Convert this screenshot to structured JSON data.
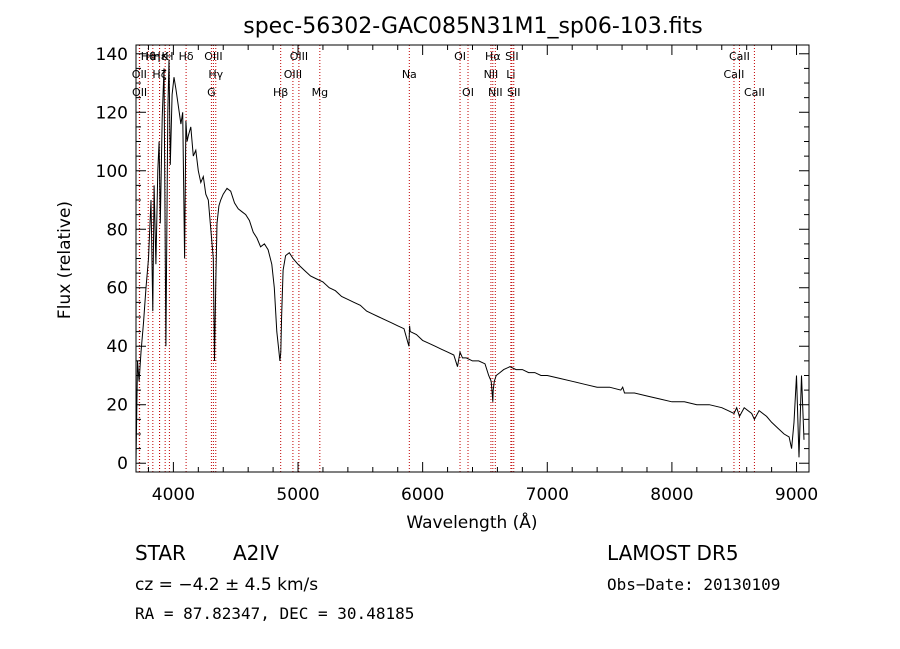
{
  "chart_data": {
    "type": "line",
    "title": "spec-56302-GAC085N31M1_sp06-103.fits",
    "xlabel": "Wavelength (Å)",
    "ylabel": "Flux (relative)",
    "xlim": [
      3700,
      9100
    ],
    "ylim": [
      -3,
      143
    ],
    "xticks": [
      4000,
      5000,
      6000,
      7000,
      8000,
      9000
    ],
    "yticks": [
      0,
      20,
      40,
      60,
      80,
      100,
      120,
      140
    ],
    "grid": false,
    "series": [
      {
        "x": [
          3700,
          3712,
          3725,
          3740,
          3760,
          3780,
          3800,
          3820,
          3835,
          3845,
          3860,
          3875,
          3885,
          3895,
          3910,
          3925,
          3940,
          3955,
          3965,
          3975,
          3990,
          4005,
          4020,
          4040,
          4060,
          4075,
          4090,
          4100,
          4110,
          4120,
          4140,
          4160,
          4180,
          4200,
          4220,
          4240,
          4260,
          4280,
          4300,
          4320,
          4330,
          4340,
          4350,
          4365,
          4380,
          4400,
          4430,
          4460,
          4490,
          4520,
          4550,
          4580,
          4610,
          4640,
          4670,
          4700,
          4730,
          4760,
          4790,
          4810,
          4830,
          4845,
          4855,
          4862,
          4868,
          4880,
          4900,
          4930,
          4960,
          5000,
          5050,
          5100,
          5150,
          5200,
          5250,
          5300,
          5350,
          5400,
          5450,
          5500,
          5550,
          5600,
          5650,
          5700,
          5750,
          5800,
          5850,
          5890,
          5895,
          5900,
          5950,
          6000,
          6050,
          6100,
          6150,
          6200,
          6250,
          6280,
          6300,
          6320,
          6350,
          6400,
          6450,
          6500,
          6530,
          6550,
          6560,
          6563,
          6566,
          6575,
          6590,
          6620,
          6650,
          6700,
          6750,
          6800,
          6850,
          6900,
          6950,
          7000,
          7100,
          7200,
          7300,
          7400,
          7500,
          7590,
          7605,
          7620,
          7700,
          7800,
          7900,
          8000,
          8100,
          8200,
          8300,
          8400,
          8450,
          8498,
          8520,
          8542,
          8580,
          8640,
          8662,
          8700,
          8760,
          8800,
          8850,
          8900,
          8940,
          8960,
          8980,
          9000,
          9020,
          9040,
          9060
        ],
        "y": [
          0,
          35,
          28,
          38,
          48,
          60,
          70,
          90,
          52,
          95,
          68,
          100,
          110,
          82,
          118,
          135,
          40,
          120,
          138,
          102,
          126,
          132,
          128,
          122,
          116,
          120,
          70,
          117,
          110,
          112,
          115,
          105,
          107,
          100,
          96,
          98,
          92,
          90,
          80,
          70,
          35,
          62,
          82,
          88,
          90,
          92,
          94,
          93,
          89,
          87,
          86,
          85,
          83,
          79,
          77,
          74,
          75,
          73,
          68,
          60,
          45,
          39,
          35,
          38,
          50,
          66,
          71,
          72,
          70,
          68,
          66,
          64,
          63,
          62,
          60,
          59,
          57,
          56,
          55,
          54,
          52,
          51,
          50,
          49,
          48,
          47,
          46,
          40,
          47,
          45,
          44,
          42,
          41,
          40,
          39,
          38,
          37,
          33,
          38,
          36,
          36,
          35,
          35,
          34,
          30,
          28,
          23,
          21,
          25,
          28,
          30,
          31,
          32,
          33,
          32,
          32,
          31,
          31,
          30,
          30,
          29,
          28,
          27,
          26,
          26,
          25,
          26,
          24,
          24,
          23,
          22,
          21,
          21,
          20,
          20,
          19,
          18,
          17,
          19,
          16,
          19,
          17,
          15,
          18,
          16,
          14,
          12,
          10,
          9,
          5,
          14,
          30,
          2,
          30,
          8
        ],
        "color": "#000000"
      }
    ],
    "lines": [
      {
        "name": "Hθ",
        "x": 3798,
        "row": 0
      },
      {
        "name": "Hη",
        "x": 3835,
        "row": 0
      },
      {
        "name": "Hε",
        "x": 3889,
        "row": 0
      },
      {
        "name": "K",
        "x": 3934,
        "row": 0
      },
      {
        "name": "H",
        "x": 3968,
        "row": 0
      },
      {
        "name": "Hδ",
        "x": 4102,
        "row": 0
      },
      {
        "name": "OIII",
        "x": 4321,
        "row": 0
      },
      {
        "name": "OIII",
        "x": 5007,
        "row": 0
      },
      {
        "name": "OI",
        "x": 6300,
        "row": 0
      },
      {
        "name": "Hα",
        "x": 6563,
        "row": 0
      },
      {
        "name": "SII",
        "x": 6716,
        "row": 0
      },
      {
        "name": "CaII",
        "x": 8542,
        "row": 0
      },
      {
        "name": "OII",
        "x": 3727,
        "row": 1
      },
      {
        "name": "Hζ",
        "x": 3889,
        "row": 1
      },
      {
        "name": "Hγ",
        "x": 4340,
        "row": 1
      },
      {
        "name": "OIII",
        "x": 4959,
        "row": 1
      },
      {
        "name": "Na",
        "x": 5893,
        "row": 1
      },
      {
        "name": "NII",
        "x": 6548,
        "row": 1
      },
      {
        "name": "Li",
        "x": 6708,
        "row": 1
      },
      {
        "name": "CaII",
        "x": 8498,
        "row": 1
      },
      {
        "name": "OII",
        "x": 3729,
        "row": 2
      },
      {
        "name": "G",
        "x": 4305,
        "row": 2
      },
      {
        "name": "Hβ",
        "x": 4861,
        "row": 2
      },
      {
        "name": "Mg",
        "x": 5175,
        "row": 2
      },
      {
        "name": "OI",
        "x": 6364,
        "row": 2
      },
      {
        "name": "NII",
        "x": 6583,
        "row": 2
      },
      {
        "name": "SII",
        "x": 6731,
        "row": 2
      },
      {
        "name": "CaII",
        "x": 8662,
        "row": 2
      }
    ]
  },
  "info": {
    "object_class": "STAR",
    "subclass": "A2IV",
    "survey": "LAMOST  DR5",
    "cz": "cz = −4.2 ± 4.5 km/s",
    "obs_date": "Obs−Date: 20130109",
    "coords": "RA =  87.82347, DEC =  30.48185"
  }
}
